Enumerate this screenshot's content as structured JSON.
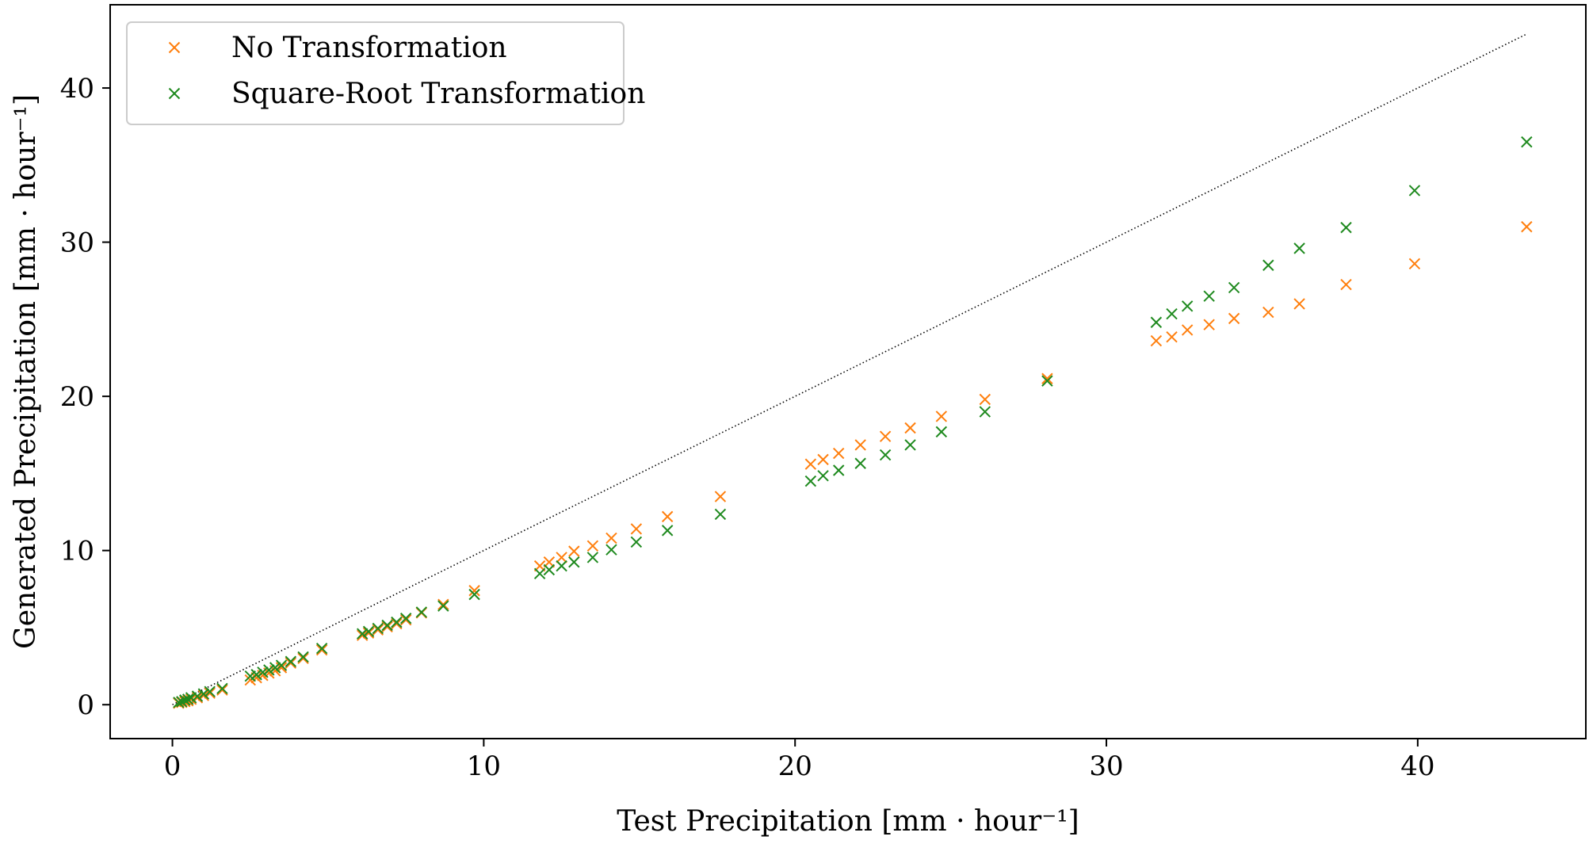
{
  "chart_data": {
    "type": "scatter",
    "xlabel": "Test Precipitation [mm · hour⁻¹]",
    "ylabel": "Generated Precipitation [mm · hour⁻¹]",
    "xlim": [
      -2.0,
      45.4
    ],
    "ylim": [
      -2.2,
      45.4
    ],
    "x_ticks": [
      0,
      10,
      20,
      30,
      40
    ],
    "y_ticks": [
      0,
      10,
      20,
      30,
      40
    ],
    "grid": false,
    "legend_position": "top-left",
    "reference_line": {
      "style": "dotted",
      "color": "#000000",
      "x": [
        0,
        43.5
      ],
      "y": [
        0,
        43.5
      ]
    },
    "series": [
      {
        "name": "No Transformation",
        "color": "#ff7f0e",
        "marker": "x",
        "points": [
          [
            0.2,
            0.1
          ],
          [
            0.3,
            0.15
          ],
          [
            0.4,
            0.2
          ],
          [
            0.5,
            0.25
          ],
          [
            0.6,
            0.35
          ],
          [
            0.8,
            0.45
          ],
          [
            1.0,
            0.6
          ],
          [
            1.2,
            0.75
          ],
          [
            1.6,
            0.95
          ],
          [
            2.5,
            1.6
          ],
          [
            2.7,
            1.75
          ],
          [
            2.9,
            1.9
          ],
          [
            3.1,
            2.05
          ],
          [
            3.3,
            2.2
          ],
          [
            3.5,
            2.4
          ],
          [
            3.8,
            2.7
          ],
          [
            4.2,
            3.0
          ],
          [
            4.8,
            3.55
          ],
          [
            6.1,
            4.5
          ],
          [
            6.3,
            4.65
          ],
          [
            6.6,
            4.85
          ],
          [
            6.9,
            5.05
          ],
          [
            7.2,
            5.25
          ],
          [
            7.5,
            5.5
          ],
          [
            8.0,
            5.95
          ],
          [
            8.7,
            6.5
          ],
          [
            9.7,
            7.4
          ],
          [
            11.8,
            9.0
          ],
          [
            12.1,
            9.25
          ],
          [
            12.5,
            9.55
          ],
          [
            12.9,
            9.95
          ],
          [
            13.5,
            10.3
          ],
          [
            14.1,
            10.8
          ],
          [
            14.9,
            11.4
          ],
          [
            15.9,
            12.2
          ],
          [
            17.6,
            13.5
          ],
          [
            20.5,
            15.6
          ],
          [
            20.9,
            15.9
          ],
          [
            21.4,
            16.3
          ],
          [
            22.1,
            16.85
          ],
          [
            22.9,
            17.4
          ],
          [
            23.7,
            17.95
          ],
          [
            24.7,
            18.7
          ],
          [
            26.1,
            19.8
          ],
          [
            28.1,
            21.15
          ],
          [
            31.6,
            23.6
          ],
          [
            32.1,
            23.85
          ],
          [
            32.6,
            24.3
          ],
          [
            33.3,
            24.65
          ],
          [
            34.1,
            25.05
          ],
          [
            35.2,
            25.45
          ],
          [
            36.2,
            26.0
          ],
          [
            37.7,
            27.25
          ],
          [
            39.9,
            28.6
          ],
          [
            43.5,
            31.0
          ]
        ]
      },
      {
        "name": "Square-Root Transformation",
        "color": "#1f8a1f",
        "marker": "x",
        "points": [
          [
            0.2,
            0.15
          ],
          [
            0.3,
            0.2
          ],
          [
            0.4,
            0.3
          ],
          [
            0.5,
            0.35
          ],
          [
            0.6,
            0.45
          ],
          [
            0.8,
            0.55
          ],
          [
            1.0,
            0.7
          ],
          [
            1.2,
            0.85
          ],
          [
            1.6,
            1.05
          ],
          [
            2.5,
            1.85
          ],
          [
            2.7,
            1.95
          ],
          [
            2.9,
            2.1
          ],
          [
            3.1,
            2.25
          ],
          [
            3.3,
            2.4
          ],
          [
            3.5,
            2.55
          ],
          [
            3.8,
            2.8
          ],
          [
            4.2,
            3.1
          ],
          [
            4.8,
            3.65
          ],
          [
            6.1,
            4.6
          ],
          [
            6.3,
            4.75
          ],
          [
            6.6,
            4.95
          ],
          [
            6.9,
            5.15
          ],
          [
            7.2,
            5.35
          ],
          [
            7.5,
            5.6
          ],
          [
            8.0,
            6.0
          ],
          [
            8.7,
            6.4
          ],
          [
            9.7,
            7.15
          ],
          [
            11.8,
            8.5
          ],
          [
            12.1,
            8.75
          ],
          [
            12.5,
            9.0
          ],
          [
            12.9,
            9.25
          ],
          [
            13.5,
            9.55
          ],
          [
            14.1,
            10.05
          ],
          [
            14.9,
            10.55
          ],
          [
            15.9,
            11.3
          ],
          [
            17.6,
            12.35
          ],
          [
            20.5,
            14.5
          ],
          [
            20.9,
            14.85
          ],
          [
            21.4,
            15.2
          ],
          [
            22.1,
            15.65
          ],
          [
            22.9,
            16.2
          ],
          [
            23.7,
            16.85
          ],
          [
            24.7,
            17.7
          ],
          [
            26.1,
            19.0
          ],
          [
            28.1,
            21.0
          ],
          [
            31.6,
            24.8
          ],
          [
            32.1,
            25.35
          ],
          [
            32.6,
            25.85
          ],
          [
            33.3,
            26.5
          ],
          [
            34.1,
            27.05
          ],
          [
            35.2,
            28.5
          ],
          [
            36.2,
            29.6
          ],
          [
            37.7,
            30.95
          ],
          [
            39.9,
            33.35
          ],
          [
            43.5,
            36.5
          ]
        ]
      }
    ]
  }
}
